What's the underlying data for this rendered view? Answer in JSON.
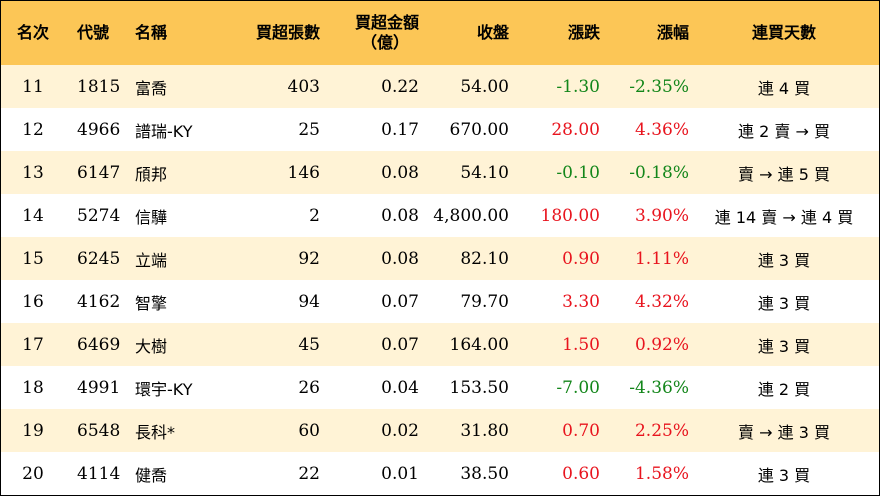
{
  "headers": {
    "rank": "名次",
    "code": "代號",
    "name": "名稱",
    "net_lots": "買超張數",
    "net_amount_line1": "買超金額",
    "net_amount_line2": "（億）",
    "close": "收盤",
    "change": "漲跌",
    "change_pct": "漲幅",
    "streak": "連買天數"
  },
  "colors": {
    "header_bg": "#fcc656",
    "stripe_bg": "#fff3d6",
    "up": "#e8141e",
    "down": "#13861a"
  },
  "rows": [
    {
      "rank": "11",
      "code": "1815",
      "name": "富喬",
      "net_lots": "403",
      "net_amount": "0.22",
      "close": "54.00",
      "change": "-1.30",
      "change_pct": "-2.35%",
      "direction": "down",
      "streak": "連 4 買"
    },
    {
      "rank": "12",
      "code": "4966",
      "name": "譜瑞-KY",
      "net_lots": "25",
      "net_amount": "0.17",
      "close": "670.00",
      "change": "28.00",
      "change_pct": "4.36%",
      "direction": "up",
      "streak": "連 2 賣 → 買"
    },
    {
      "rank": "13",
      "code": "6147",
      "name": "頎邦",
      "net_lots": "146",
      "net_amount": "0.08",
      "close": "54.10",
      "change": "-0.10",
      "change_pct": "-0.18%",
      "direction": "down",
      "streak": "賣 → 連 5 買"
    },
    {
      "rank": "14",
      "code": "5274",
      "name": "信驊",
      "net_lots": "2",
      "net_amount": "0.08",
      "close": "4,800.00",
      "change": "180.00",
      "change_pct": "3.90%",
      "direction": "up",
      "streak": "連 14 賣 → 連 4 買"
    },
    {
      "rank": "15",
      "code": "6245",
      "name": "立端",
      "net_lots": "92",
      "net_amount": "0.08",
      "close": "82.10",
      "change": "0.90",
      "change_pct": "1.11%",
      "direction": "up",
      "streak": "連 3 買"
    },
    {
      "rank": "16",
      "code": "4162",
      "name": "智擎",
      "net_lots": "94",
      "net_amount": "0.07",
      "close": "79.70",
      "change": "3.30",
      "change_pct": "4.32%",
      "direction": "up",
      "streak": "連 3 買"
    },
    {
      "rank": "17",
      "code": "6469",
      "name": "大樹",
      "net_lots": "45",
      "net_amount": "0.07",
      "close": "164.00",
      "change": "1.50",
      "change_pct": "0.92%",
      "direction": "up",
      "streak": "連 3 買"
    },
    {
      "rank": "18",
      "code": "4991",
      "name": "環宇-KY",
      "net_lots": "26",
      "net_amount": "0.04",
      "close": "153.50",
      "change": "-7.00",
      "change_pct": "-4.36%",
      "direction": "down",
      "streak": "連 2 買"
    },
    {
      "rank": "19",
      "code": "6548",
      "name": "長科*",
      "net_lots": "60",
      "net_amount": "0.02",
      "close": "31.80",
      "change": "0.70",
      "change_pct": "2.25%",
      "direction": "up",
      "streak": "賣 → 連 3 買"
    },
    {
      "rank": "20",
      "code": "4114",
      "name": "健喬",
      "net_lots": "22",
      "net_amount": "0.01",
      "close": "38.50",
      "change": "0.60",
      "change_pct": "1.58%",
      "direction": "up",
      "streak": "連 3 買"
    }
  ]
}
